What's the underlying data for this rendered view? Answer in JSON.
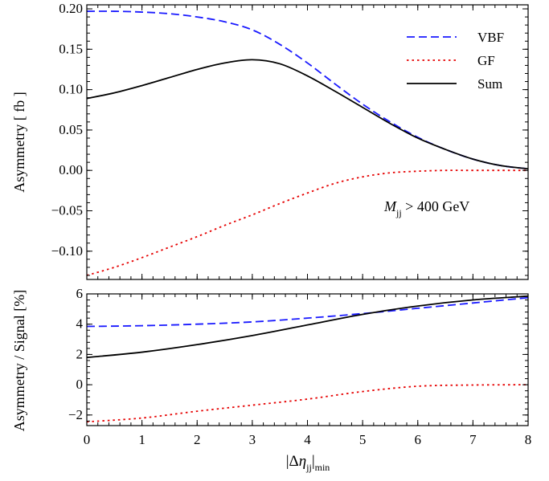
{
  "chart_data": [
    {
      "type": "line",
      "panel": "top",
      "ylabel": "Asymmetry [ fb ]",
      "xlabel": "",
      "xlim": [
        0,
        8
      ],
      "ylim": [
        -0.135,
        0.205
      ],
      "xticks": [
        0,
        1,
        2,
        3,
        4,
        5,
        6,
        7,
        8
      ],
      "yticks": [
        -0.1,
        -0.05,
        0.0,
        0.05,
        0.1,
        0.15,
        0.2
      ],
      "ytick_labels": [
        "−0.10",
        "−0.05",
        "0.00",
        "0.05",
        "0.10",
        "0.15",
        "0.20"
      ],
      "legend_position": "top-right",
      "annotation": {
        "var": "M",
        "sub": "jj",
        "rest": " > 400 GeV"
      },
      "series": [
        {
          "name": "VBF",
          "color": "#1a1aff",
          "style": "dashed",
          "x": [
            0,
            0.5,
            1,
            1.5,
            2,
            2.5,
            3,
            3.5,
            4,
            4.5,
            5,
            5.5,
            6,
            6.5,
            7,
            7.5,
            8
          ],
          "y": [
            0.197,
            0.197,
            0.196,
            0.194,
            0.19,
            0.184,
            0.174,
            0.156,
            0.133,
            0.107,
            0.082,
            0.06,
            0.041,
            0.026,
            0.014,
            0.006,
            0.002
          ]
        },
        {
          "name": "GF",
          "color": "#e60000",
          "style": "dotted",
          "x": [
            0,
            0.5,
            1,
            1.5,
            2,
            2.5,
            3,
            3.5,
            4,
            4.5,
            5,
            5.5,
            6,
            6.5,
            7,
            7.5,
            8
          ],
          "y": [
            -0.13,
            -0.12,
            -0.108,
            -0.095,
            -0.082,
            -0.068,
            -0.055,
            -0.041,
            -0.028,
            -0.016,
            -0.008,
            -0.003,
            -0.001,
            0.0,
            0.0,
            0.0,
            0.0
          ]
        },
        {
          "name": "Sum",
          "color": "#000000",
          "style": "solid",
          "x": [
            0,
            0.5,
            1,
            1.5,
            2,
            2.5,
            3,
            3.5,
            4,
            4.5,
            5,
            5.5,
            6,
            6.5,
            7,
            7.5,
            8
          ],
          "y": [
            0.089,
            0.096,
            0.105,
            0.115,
            0.125,
            0.133,
            0.137,
            0.132,
            0.117,
            0.098,
            0.078,
            0.058,
            0.04,
            0.026,
            0.014,
            0.006,
            0.002
          ]
        }
      ]
    },
    {
      "type": "line",
      "panel": "bottom",
      "ylabel": "Asymmetry / Signal [%]",
      "xlabel_parts": {
        "delta": "Δ",
        "eta": "η",
        "sub": "jj",
        "subscript": "min"
      },
      "xlim": [
        0,
        8
      ],
      "ylim": [
        -2.7,
        6.0
      ],
      "xticks": [
        0,
        1,
        2,
        3,
        4,
        5,
        6,
        7,
        8
      ],
      "yticks": [
        -2,
        0,
        2,
        4,
        6
      ],
      "ytick_labels": [
        "−2",
        "0",
        "2",
        "4",
        "6"
      ],
      "series": [
        {
          "name": "VBF",
          "color": "#1a1aff",
          "style": "dashed",
          "x": [
            0,
            1,
            2,
            3,
            4,
            5,
            6,
            7,
            8
          ],
          "y": [
            3.85,
            3.9,
            4.0,
            4.15,
            4.4,
            4.7,
            5.05,
            5.4,
            5.75
          ]
        },
        {
          "name": "GF",
          "color": "#e60000",
          "style": "dotted",
          "x": [
            0,
            1,
            2,
            3,
            4,
            5,
            6,
            7,
            8
          ],
          "y": [
            -2.45,
            -2.2,
            -1.75,
            -1.35,
            -0.95,
            -0.45,
            -0.1,
            -0.02,
            0.0
          ]
        },
        {
          "name": "Sum",
          "color": "#000000",
          "style": "solid",
          "x": [
            0,
            1,
            2,
            3,
            4,
            5,
            6,
            7,
            8
          ],
          "y": [
            1.8,
            2.15,
            2.65,
            3.25,
            3.95,
            4.65,
            5.2,
            5.6,
            5.85
          ]
        }
      ]
    }
  ]
}
